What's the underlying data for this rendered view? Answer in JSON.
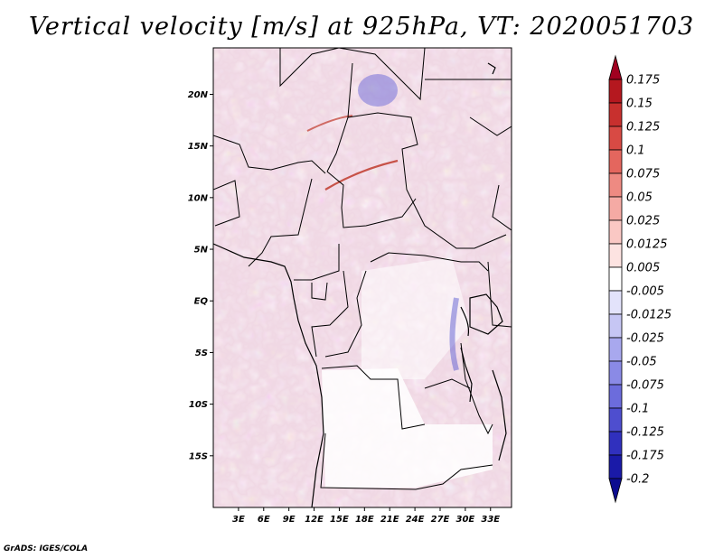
{
  "title": "Vertical velocity [m/s] at 925hPa, VT: 2020051703",
  "footer": "GrADS: IGES/COLA",
  "map": {
    "lat_labels": [
      "20N",
      "15N",
      "10N",
      "5N",
      "EQ",
      "5S",
      "10S",
      "15S"
    ],
    "lat_values": [
      20,
      15,
      10,
      5,
      0,
      -5,
      -10,
      -15
    ],
    "lon_labels": [
      "3E",
      "6E",
      "9E",
      "12E",
      "15E",
      "18E",
      "21E",
      "24E",
      "27E",
      "30E",
      "33E"
    ],
    "lon_values": [
      3,
      6,
      9,
      12,
      15,
      18,
      21,
      24,
      27,
      30,
      33
    ],
    "lat_range": [
      -20,
      24.5
    ],
    "lon_range": [
      0,
      35.5
    ]
  },
  "colorbar": {
    "labels": [
      "0.175",
      "0.15",
      "0.125",
      "0.1",
      "0.075",
      "0.05",
      "0.025",
      "0.0125",
      "0.005",
      "-0.005",
      "-0.0125",
      "-0.025",
      "-0.05",
      "-0.075",
      "-0.1",
      "-0.125",
      "-0.175",
      "-0.2"
    ],
    "colors": [
      "#a00020",
      "#b5181f",
      "#c8302e",
      "#d84a44",
      "#e4665e",
      "#ee8a82",
      "#f5aaa4",
      "#fac8c4",
      "#fde3e1",
      "#ffffff",
      "#e3e3fb",
      "#c6c6f4",
      "#a8a8ee",
      "#8a8ae6",
      "#6c6cdc",
      "#4e4ecf",
      "#3030be",
      "#1a1aa8",
      "#0c0c90"
    ]
  }
}
